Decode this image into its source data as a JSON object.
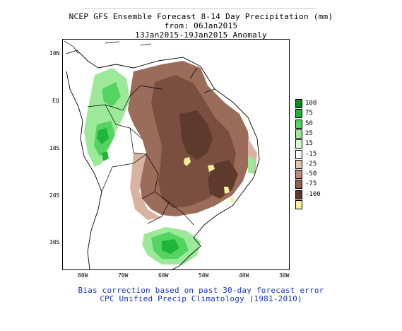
{
  "title": {
    "line1": "NCEP GFS Ensemble Forecast 8-14 Day Precipitation (mm)",
    "line2": "from: 06Jan2015",
    "line3": "13Jan2015-19Jan2015 Anomaly"
  },
  "map": {
    "region": "South America",
    "lat_labels": [
      "10N",
      "EQ",
      "10S",
      "20S",
      "30S"
    ],
    "lon_labels": [
      "80W",
      "70W",
      "60W",
      "50W",
      "40W",
      "30W"
    ]
  },
  "legend": {
    "units": "mm",
    "entries": [
      {
        "label": "100",
        "color": "#0a8c1e"
      },
      {
        "label": "75",
        "color": "#1fb43a"
      },
      {
        "label": "50",
        "color": "#55d462"
      },
      {
        "label": "25",
        "color": "#9ce99a"
      },
      {
        "label": "15",
        "color": "#d6f7d0"
      },
      {
        "label": "-15",
        "color": "#ffffff"
      },
      {
        "label": "-25",
        "color": "#e4c2b1"
      },
      {
        "label": "-50",
        "color": "#b88a78"
      },
      {
        "label": "-75",
        "color": "#8f6250"
      },
      {
        "label": "-100",
        "color": "#5e3a2c"
      },
      {
        "label": "",
        "color": "#fbef9a"
      }
    ]
  },
  "footer": {
    "line1": "Bias correction based on past 30-day forecast error",
    "line2": "CPC Unified Precip Climatology (1981-2010)"
  }
}
